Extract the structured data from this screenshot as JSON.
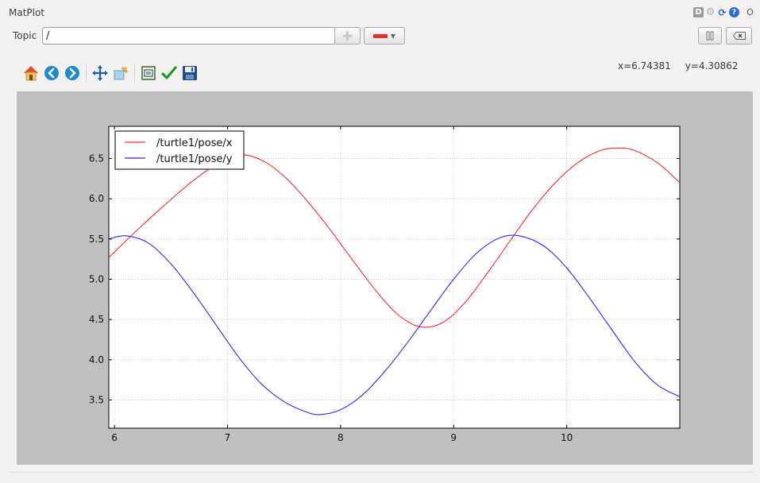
{
  "window": {
    "title": "MatPlot",
    "icons": [
      "d-badge-icon",
      "gear-icon",
      "reload-icon",
      "help-icon",
      "close-icon"
    ],
    "icon_labels": {
      "d": "D",
      "help": "?",
      "close": "O"
    }
  },
  "topic": {
    "label": "Topic",
    "value": "/"
  },
  "controls": {
    "add_icon": "plus-icon",
    "color_swatch": "#dd3333",
    "pause_icon": "pause-icon",
    "clear_icon": "clear-icon"
  },
  "toolbar": {
    "icons": [
      "home-icon",
      "back-icon",
      "forward-icon",
      "pan-icon",
      "zoom-icon",
      "subplots-icon",
      "check-icon",
      "save-icon"
    ]
  },
  "coords": {
    "x": "x=6.74381",
    "y": "y=4.30862"
  },
  "colors": {
    "canvas_bg": "#bfbfbf",
    "series_x": "#ff2a2a",
    "series_y": "#2a2aff"
  },
  "chart_data": {
    "type": "line",
    "title": "",
    "xlabel": "",
    "ylabel": "",
    "xlim": [
      5.95,
      11.0
    ],
    "ylim": [
      3.15,
      6.9
    ],
    "xticks": [
      "6",
      "7",
      "8",
      "9",
      "10"
    ],
    "yticks": [
      "3.5",
      "4.0",
      "4.5",
      "5.0",
      "5.5",
      "6.0",
      "6.5"
    ],
    "grid": true,
    "legend": "top-left",
    "series": [
      {
        "name": "/turtle1/pose/x",
        "color": "#ff2a2a",
        "x": [
          5.95,
          6.2,
          6.45,
          6.7,
          6.95,
          7.1,
          7.3,
          7.5,
          7.7,
          7.9,
          8.1,
          8.3,
          8.5,
          8.7,
          8.9,
          9.1,
          9.3,
          9.5,
          9.7,
          9.9,
          10.1,
          10.3,
          10.47,
          10.6,
          10.8,
          11.0
        ],
        "values": [
          5.27,
          5.61,
          5.93,
          6.23,
          6.47,
          6.55,
          6.48,
          6.28,
          5.98,
          5.63,
          5.25,
          4.88,
          4.57,
          4.41,
          4.46,
          4.71,
          5.08,
          5.48,
          5.87,
          6.2,
          6.45,
          6.6,
          6.63,
          6.6,
          6.45,
          6.2
        ]
      },
      {
        "name": "/turtle1/pose/y",
        "color": "#2a2aff",
        "x": [
          5.95,
          6.1,
          6.3,
          6.5,
          6.7,
          6.9,
          7.1,
          7.3,
          7.5,
          7.7,
          7.82,
          8.0,
          8.2,
          8.4,
          8.6,
          8.8,
          9.0,
          9.2,
          9.4,
          9.58,
          9.8,
          10.0,
          10.2,
          10.4,
          10.6,
          10.8,
          11.0
        ],
        "values": [
          5.5,
          5.54,
          5.45,
          5.19,
          4.83,
          4.43,
          4.03,
          3.7,
          3.48,
          3.35,
          3.32,
          3.38,
          3.57,
          3.87,
          4.23,
          4.62,
          5.0,
          5.32,
          5.51,
          5.54,
          5.41,
          5.14,
          4.77,
          4.37,
          3.98,
          3.69,
          3.54
        ]
      }
    ]
  }
}
